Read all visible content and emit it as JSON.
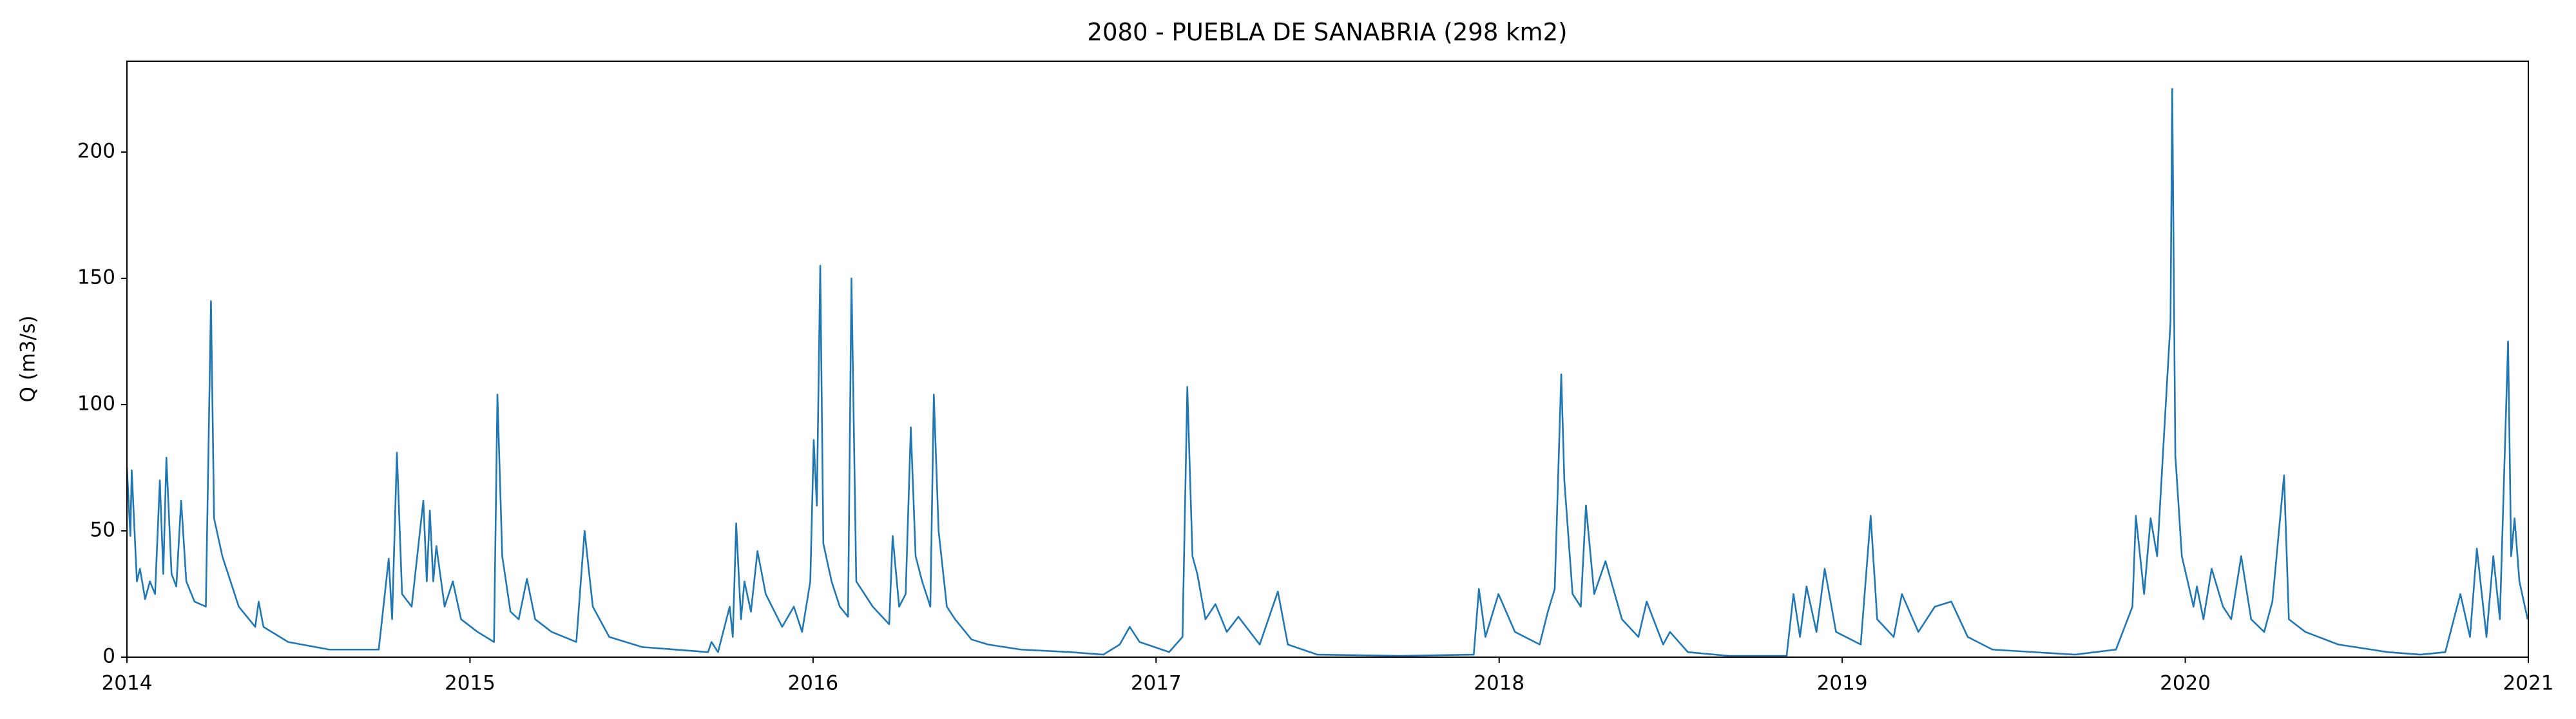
{
  "chart_data": {
    "type": "line",
    "title": "2080 - PUEBLA DE SANABRIA (298 km2)",
    "ylabel": "Q (m3/s)",
    "xlim": [
      2014,
      2021
    ],
    "xticks": [
      2014,
      2015,
      2016,
      2017,
      2018,
      2019,
      2020,
      2021
    ],
    "ylim": [
      0,
      236
    ],
    "yticks": [
      0,
      50,
      100,
      150,
      200
    ],
    "grid": false,
    "x": [
      2014.0,
      2014.01,
      2014.014,
      2014.029,
      2014.038,
      2014.053,
      2014.067,
      2014.082,
      2014.096,
      2014.106,
      2014.115,
      2014.13,
      2014.144,
      2014.158,
      2014.173,
      2014.197,
      2014.23,
      2014.245,
      2014.254,
      2014.278,
      2014.326,
      2014.374,
      2014.384,
      2014.398,
      2014.47,
      2014.59,
      2014.734,
      2014.763,
      2014.773,
      2014.787,
      2014.802,
      2014.83,
      2014.864,
      2014.874,
      2014.883,
      2014.893,
      2014.902,
      2014.926,
      2014.95,
      2014.974,
      2015.022,
      2015.07,
      2015.08,
      2015.094,
      2015.118,
      2015.142,
      2015.166,
      2015.19,
      2015.238,
      2015.31,
      2015.334,
      2015.358,
      2015.406,
      2015.502,
      2015.694,
      2015.704,
      2015.723,
      2015.757,
      2015.766,
      2015.776,
      2015.79,
      2015.8,
      2015.819,
      2015.838,
      2015.862,
      2015.91,
      2015.944,
      2015.968,
      2015.992,
      2016.002,
      2016.011,
      2016.021,
      2016.03,
      2016.054,
      2016.078,
      2016.102,
      2016.112,
      2016.126,
      2016.174,
      2016.222,
      2016.232,
      2016.251,
      2016.27,
      2016.285,
      2016.299,
      2016.318,
      2016.342,
      2016.352,
      2016.366,
      2016.39,
      2016.414,
      2016.462,
      2016.51,
      2016.606,
      2016.75,
      2016.846,
      2016.894,
      2016.923,
      2016.952,
      2017.038,
      2017.077,
      2017.091,
      2017.106,
      2017.12,
      2017.144,
      2017.173,
      2017.206,
      2017.24,
      2017.302,
      2017.355,
      2017.384,
      2017.47,
      2017.71,
      2017.926,
      2017.941,
      2017.96,
      2017.998,
      2018.046,
      2018.118,
      2018.142,
      2018.162,
      2018.181,
      2018.19,
      2018.214,
      2018.238,
      2018.253,
      2018.277,
      2018.31,
      2018.358,
      2018.406,
      2018.43,
      2018.478,
      2018.498,
      2018.55,
      2018.67,
      2018.838,
      2018.858,
      2018.877,
      2018.896,
      2018.925,
      2018.949,
      2018.982,
      2019.054,
      2019.083,
      2019.102,
      2019.15,
      2019.174,
      2019.222,
      2019.27,
      2019.318,
      2019.366,
      2019.438,
      2019.678,
      2019.798,
      2019.846,
      2019.856,
      2019.88,
      2019.899,
      2019.918,
      2019.957,
      2019.962,
      2019.971,
      2019.99,
      2020.024,
      2020.034,
      2020.053,
      2020.077,
      2020.11,
      2020.134,
      2020.163,
      2020.192,
      2020.23,
      2020.254,
      2020.288,
      2020.302,
      2020.35,
      2020.446,
      2020.59,
      2020.686,
      2020.758,
      2020.802,
      2020.83,
      2020.85,
      2020.878,
      2020.898,
      2020.917,
      2020.941,
      2020.95,
      2020.96,
      2020.974,
      2020.998
    ],
    "series": [
      {
        "name": "Q",
        "color": "#1f77b4",
        "values": [
          75,
          48,
          74,
          30,
          35,
          23,
          30,
          25,
          70,
          33,
          79,
          33,
          28,
          62,
          30,
          22,
          20,
          141,
          55,
          40,
          20,
          12,
          22,
          12,
          6,
          3,
          3,
          39,
          15,
          81,
          25,
          20,
          62,
          30,
          58,
          30,
          44,
          20,
          30,
          15,
          10,
          6,
          104,
          40,
          18,
          15,
          31,
          15,
          10,
          6,
          50,
          20,
          8,
          4,
          2,
          6,
          2,
          20,
          8,
          53,
          15,
          30,
          18,
          42,
          25,
          12,
          20,
          10,
          30,
          86,
          60,
          155,
          45,
          30,
          20,
          16,
          150,
          30,
          20,
          13,
          48,
          20,
          25,
          91,
          40,
          30,
          20,
          104,
          50,
          20,
          15,
          7,
          5,
          3,
          2,
          1,
          5,
          12,
          6,
          2,
          8,
          107,
          40,
          33,
          15,
          21,
          10,
          16,
          5,
          26,
          5,
          1,
          0.5,
          1,
          27,
          8,
          25,
          10,
          5,
          18,
          27,
          112,
          70,
          25,
          20,
          60,
          25,
          38,
          15,
          8,
          22,
          5,
          10,
          2,
          0.5,
          0.5,
          25,
          8,
          28,
          10,
          35,
          10,
          5,
          56,
          15,
          8,
          25,
          10,
          20,
          22,
          8,
          3,
          1,
          3,
          20,
          56,
          25,
          55,
          40,
          133,
          225,
          80,
          40,
          20,
          28,
          15,
          35,
          20,
          15,
          40,
          15,
          10,
          22,
          72,
          15,
          10,
          5,
          2,
          1,
          2,
          25,
          8,
          43,
          8,
          40,
          15,
          125,
          40,
          55,
          30,
          15
        ]
      }
    ]
  }
}
